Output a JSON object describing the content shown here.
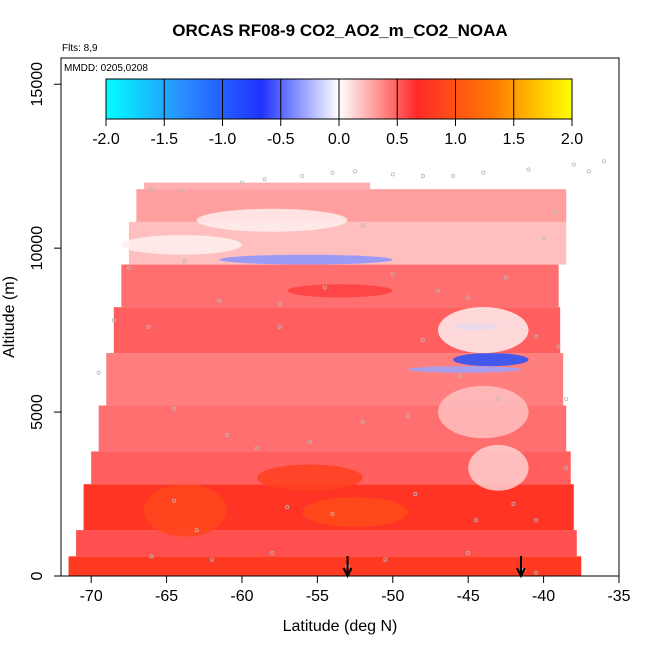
{
  "chart_data": {
    "type": "heatmap",
    "title": "ORCAS RF08-9 CO2_AO2_m_CO2_NOAA",
    "flights_note": "Flts: 8,9",
    "date_note": "MMDD: 0205,0208",
    "xlabel": "Latitude (deg N)",
    "ylabel": "Altitude (m)",
    "xlim": [
      -72,
      -35
    ],
    "ylim": [
      0,
      15800
    ],
    "x_ticks": [
      "-70",
      "-65",
      "-60",
      "-55",
      "-50",
      "-45",
      "-40",
      "-35"
    ],
    "y_ticks": [
      "0",
      "5000",
      "10000",
      "15000"
    ],
    "colorbar": {
      "ticks": [
        "-2.0",
        "-1.5",
        "-1.0",
        "-0.5",
        "0.0",
        "0.5",
        "1.0",
        "1.5",
        "2.0"
      ],
      "range": [
        -2.0,
        2.0
      ],
      "colors": [
        "#00ffff",
        "#2a8cff",
        "#1f33ff",
        "#ffffff",
        "#ff2a2a",
        "#ff7a00",
        "#ffff00"
      ]
    },
    "arrows_latitude": [
      -53,
      -41.5
    ],
    "bands": [
      {
        "alt": [
          0,
          600
        ],
        "lat": [
          -71.5,
          -37.5
        ],
        "value": 0.8
      },
      {
        "alt": [
          600,
          1400
        ],
        "lat": [
          -71.0,
          -37.8
        ],
        "value": 0.55
      },
      {
        "alt": [
          1400,
          2800
        ],
        "lat": [
          -70.5,
          -38.0
        ],
        "value": 0.75
      },
      {
        "alt": [
          2800,
          3800
        ],
        "lat": [
          -70.0,
          -38.2
        ],
        "value": 0.5
      },
      {
        "alt": [
          3800,
          5200
        ],
        "lat": [
          -69.5,
          -38.5
        ],
        "value": 0.45
      },
      {
        "alt": [
          5200,
          6800
        ],
        "lat": [
          -69.0,
          -38.7
        ],
        "value": 0.4
      },
      {
        "alt": [
          6800,
          8200
        ],
        "lat": [
          -68.5,
          -38.9
        ],
        "value": 0.5
      },
      {
        "alt": [
          8200,
          9500
        ],
        "lat": [
          -68.0,
          -39.0
        ],
        "value": 0.45
      },
      {
        "alt": [
          9500,
          10800
        ],
        "lat": [
          -67.5,
          -38.5
        ],
        "value": 0.2
      },
      {
        "alt": [
          10800,
          11800
        ],
        "lat": [
          -67.0,
          -38.5
        ],
        "value": 0.3
      },
      {
        "alt": [
          11800,
          12000
        ],
        "lat": [
          -66.5,
          -51.5
        ],
        "value": 0.25
      }
    ],
    "features": [
      {
        "lat": [
          -66.5,
          -61.0
        ],
        "alt": [
          1200,
          2800
        ],
        "value": 0.9
      },
      {
        "lat": [
          -56.0,
          -49.0
        ],
        "alt": [
          1500,
          2400
        ],
        "value": 0.95
      },
      {
        "lat": [
          -59.0,
          -52.0
        ],
        "alt": [
          2600,
          3400
        ],
        "value": 0.85
      },
      {
        "lat": [
          -61.5,
          -50.0
        ],
        "alt": [
          9500,
          9800
        ],
        "value": -0.35
      },
      {
        "lat": [
          -46.0,
          -43.0
        ],
        "alt": [
          7500,
          7700
        ],
        "value": -0.5
      },
      {
        "lat": [
          -46.0,
          -41.0
        ],
        "alt": [
          6400,
          6800
        ],
        "value": -0.9
      },
      {
        "lat": [
          -49.0,
          -41.5
        ],
        "alt": [
          6200,
          6400
        ],
        "value": -0.3
      },
      {
        "lat": [
          -47.0,
          -41.0
        ],
        "alt": [
          6800,
          8200
        ],
        "value": 0.05
      },
      {
        "lat": [
          -57.0,
          -50.0
        ],
        "alt": [
          8500,
          8900
        ],
        "value": 0.6
      },
      {
        "lat": [
          -63.0,
          -53.0
        ],
        "alt": [
          10500,
          11200
        ],
        "value": 0.05
      },
      {
        "lat": [
          -68.0,
          -60.0
        ],
        "alt": [
          9800,
          10400
        ],
        "value": 0.05
      },
      {
        "lat": [
          -47.0,
          -41.0
        ],
        "alt": [
          4200,
          5800
        ],
        "value": 0.2
      },
      {
        "lat": [
          -45.0,
          -41.0
        ],
        "alt": [
          2600,
          4000
        ],
        "value": 0.15
      }
    ],
    "sample_points": [
      [
        -66,
        11800
      ],
      [
        -64,
        11750
      ],
      [
        -60,
        12000
      ],
      [
        -58.5,
        12100
      ],
      [
        -56,
        12200
      ],
      [
        -54,
        12300
      ],
      [
        -52.5,
        12350
      ],
      [
        -50,
        12250
      ],
      [
        -48,
        12200
      ],
      [
        -46,
        12200
      ],
      [
        -44,
        12300
      ],
      [
        -41,
        12400
      ],
      [
        -38,
        12550
      ],
      [
        -36,
        12650
      ],
      [
        -37,
        12350
      ],
      [
        -67.5,
        9400
      ],
      [
        -68.5,
        7800
      ],
      [
        -69.5,
        6200
      ],
      [
        -66.2,
        7600
      ],
      [
        -61.5,
        8400
      ],
      [
        -57.5,
        8300
      ],
      [
        -54.5,
        8800
      ],
      [
        -52,
        10700
      ],
      [
        -50,
        9200
      ],
      [
        -47,
        8700
      ],
      [
        -45,
        8500
      ],
      [
        -42.5,
        9100
      ],
      [
        -40.5,
        7300
      ],
      [
        -64.5,
        5100
      ],
      [
        -61,
        4300
      ],
      [
        -59,
        3900
      ],
      [
        -55.5,
        4100
      ],
      [
        -52,
        4700
      ],
      [
        -49,
        4900
      ],
      [
        -45.5,
        6100
      ],
      [
        -43,
        5400
      ],
      [
        -64.5,
        2300
      ],
      [
        -63,
        1400
      ],
      [
        -57,
        2100
      ],
      [
        -54,
        1900
      ],
      [
        -48.5,
        2500
      ],
      [
        -44.5,
        1700
      ],
      [
        -42,
        2200
      ],
      [
        -40.5,
        1700
      ],
      [
        -66,
        600
      ],
      [
        -62,
        500
      ],
      [
        -58,
        700
      ],
      [
        -53,
        300
      ],
      [
        -50.5,
        500
      ],
      [
        -45,
        700
      ],
      [
        -41.3,
        200
      ],
      [
        -40.5,
        100
      ],
      [
        -38.5,
        3300
      ],
      [
        -38.5,
        5400
      ],
      [
        -39,
        7000
      ],
      [
        -40,
        10300
      ],
      [
        -39.2,
        11100
      ],
      [
        -63.8,
        9600
      ],
      [
        -57.5,
        7600
      ],
      [
        -48,
        7200
      ]
    ]
  }
}
